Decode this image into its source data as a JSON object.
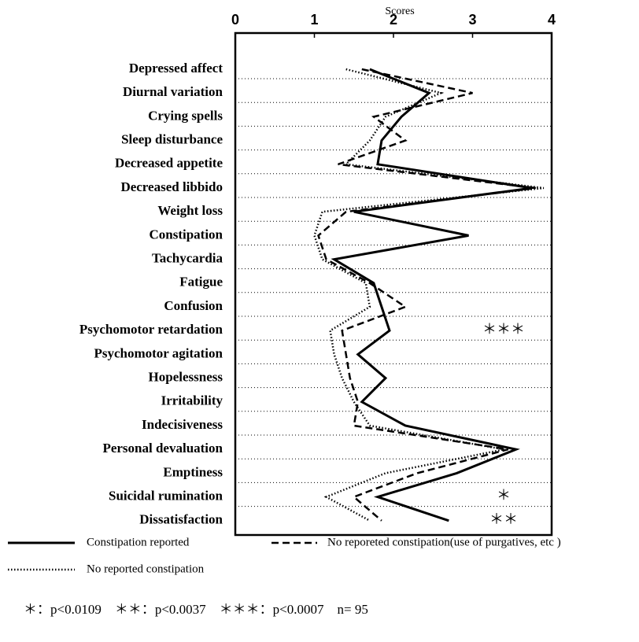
{
  "chart_data": {
    "type": "line",
    "orientation": "horizontal",
    "xlabel": "Scores",
    "xlim": [
      0,
      4
    ],
    "xticks": [
      0,
      1,
      2,
      3,
      4
    ],
    "categories": [
      "Depressed affect",
      "Diurnal variation",
      "Crying spells",
      "Sleep disturbance",
      "Decreased appetite",
      "Decreased libbido",
      "Weight loss",
      "Constipation",
      "Tachycardia",
      "Fatigue",
      "Confusion",
      "Psychomotor retardation",
      "Psychomotor agitation",
      "Hopelessness",
      "Irritability",
      "Indecisiveness",
      "Personal devaluation",
      "Emptiness",
      "Suicidal rumination",
      "Dissatisfaction"
    ],
    "series": [
      {
        "name": "Constipation reported",
        "color": "#000000",
        "line_style": "solid",
        "values": [
          1.7,
          2.45,
          2.1,
          1.85,
          1.8,
          3.75,
          1.5,
          2.95,
          1.25,
          1.75,
          1.85,
          1.95,
          1.55,
          1.9,
          1.6,
          2.15,
          3.55,
          2.8,
          1.8,
          2.7
        ]
      },
      {
        "name": "No reporeted constipation(use of purgatives, etc )",
        "color": "#000000",
        "line_style": "dashed",
        "values": [
          1.6,
          3.0,
          1.75,
          2.15,
          1.3,
          3.8,
          1.4,
          1.05,
          1.15,
          1.7,
          2.15,
          1.35,
          1.4,
          1.45,
          1.55,
          1.5,
          3.45,
          2.3,
          1.5,
          1.85
        ]
      },
      {
        "name": "No reported constipation",
        "color": "#000000",
        "line_style": "dotted",
        "values": [
          1.4,
          2.6,
          1.9,
          1.7,
          1.4,
          3.9,
          1.1,
          1.0,
          1.1,
          1.65,
          1.7,
          1.2,
          1.25,
          1.35,
          1.5,
          1.7,
          3.4,
          1.9,
          1.15,
          1.7
        ]
      }
    ],
    "annotations": [
      {
        "category": 11,
        "text": "＊＊＊"
      },
      {
        "category": 18,
        "text": "＊"
      },
      {
        "category": 19,
        "text": "＊＊"
      }
    ],
    "note": "＊：p<0.0109　＊＊：p<0.0037　＊＊＊：p<0.0007　n= 95"
  }
}
